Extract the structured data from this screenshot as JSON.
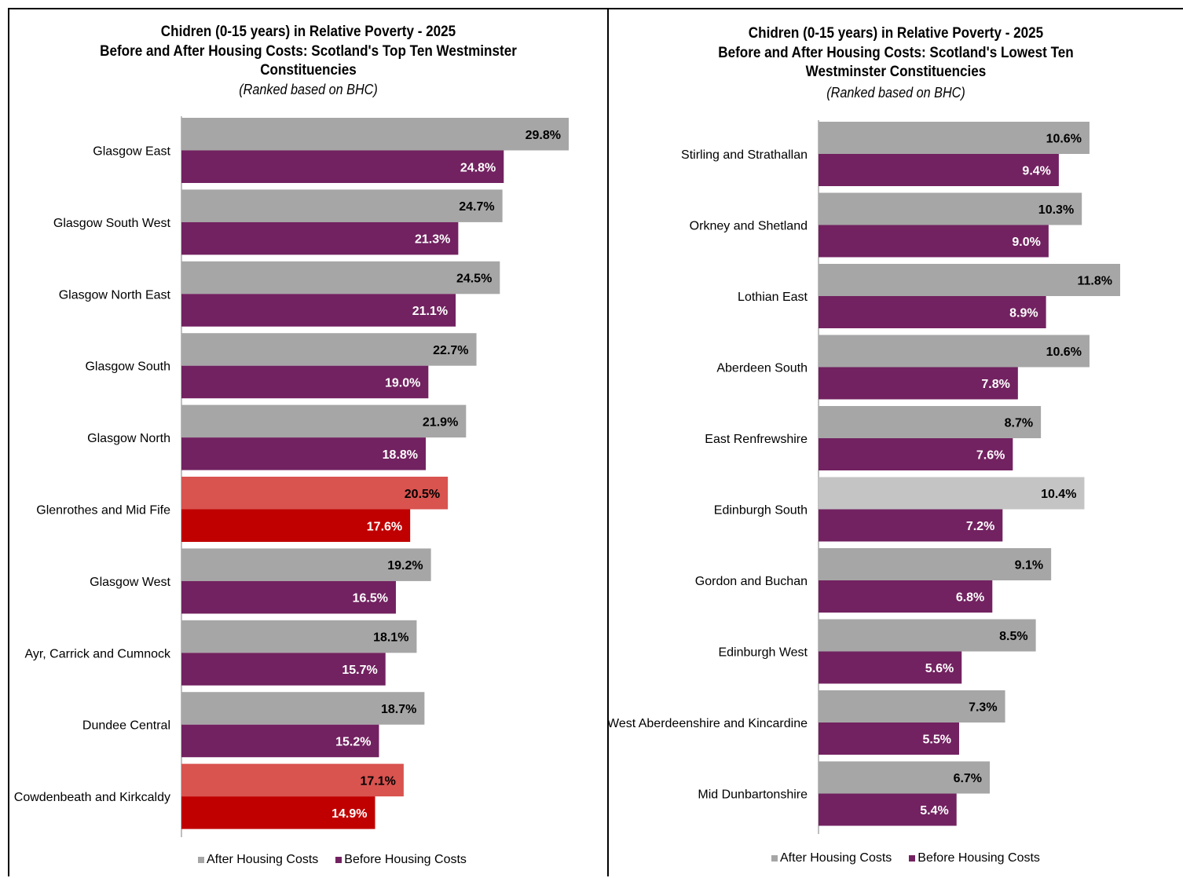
{
  "chart_data": [
    {
      "type": "bar",
      "title": "Chidren (0-15 years) in Relative Poverty - 2025",
      "title2": "Before and After Housing Costs: Scotland's Top Ten Westminster",
      "title3": "Constituencies",
      "subtitle": "(Ranked based on BHC)",
      "orientation": "horizontal",
      "xlim": [
        0,
        30
      ],
      "grid": false,
      "legend_position": "bottom",
      "categories": [
        "Glasgow East",
        "Glasgow South West",
        "Glasgow North East",
        "Glasgow South",
        "Glasgow North",
        "Glenrothes and Mid Fife",
        "Glasgow West",
        "Ayr, Carrick and Cumnock",
        "Dundee Central",
        "Cowdenbeath and Kirkcaldy"
      ],
      "series": [
        {
          "name": "After Housing Costs",
          "color": "#a6a6a6",
          "values": [
            29.8,
            24.7,
            24.5,
            22.7,
            21.9,
            20.5,
            19.2,
            18.1,
            18.7,
            17.1
          ],
          "labels": [
            "29.8%",
            "24.7%",
            "24.5%",
            "22.7%",
            "21.9%",
            "20.5%",
            "19.2%",
            "18.1%",
            "18.7%",
            "17.1%"
          ]
        },
        {
          "name": "Before Housing Costs",
          "color": "#722260",
          "values": [
            24.8,
            21.3,
            21.1,
            19.0,
            18.8,
            17.6,
            16.5,
            15.7,
            15.2,
            14.9
          ],
          "labels": [
            "24.8%",
            "21.3%",
            "21.1%",
            "19.0%",
            "18.8%",
            "17.6%",
            "16.5%",
            "15.7%",
            "15.2%",
            "14.9%"
          ]
        }
      ],
      "highlight": [
        {
          "index": 5,
          "after_color": "#d9534f",
          "before_color": "#c00000"
        },
        {
          "index": 9,
          "after_color": "#d9534f",
          "before_color": "#c00000"
        }
      ]
    },
    {
      "type": "bar",
      "title": "Chidren (0-15 years) in Relative Poverty - 2025",
      "title2": "Before and After Housing Costs: Scotland's Lowest Ten",
      "title3": "Westminster Constituencies",
      "subtitle": "(Ranked based on BHC)",
      "orientation": "horizontal",
      "xlim": [
        0,
        12
      ],
      "grid": false,
      "legend_position": "bottom",
      "categories": [
        "Stirling and Strathallan",
        "Orkney and Shetland",
        "Lothian East",
        "Aberdeen South",
        "East Renfrewshire",
        "Edinburgh South",
        "Gordon and Buchan",
        "Edinburgh West",
        "West Aberdeenshire and Kincardine",
        "Mid Dunbartonshire"
      ],
      "series": [
        {
          "name": "After Housing Costs",
          "color": "#a6a6a6",
          "values": [
            10.6,
            10.3,
            11.8,
            10.6,
            8.7,
            10.4,
            9.1,
            8.5,
            7.3,
            6.7
          ],
          "labels": [
            "10.6%",
            "10.3%",
            "11.8%",
            "10.6%",
            "8.7%",
            "10.4%",
            "9.1%",
            "8.5%",
            "7.3%",
            "6.7%"
          ]
        },
        {
          "name": "Before Housing Costs",
          "color": "#722260",
          "values": [
            9.4,
            9.0,
            8.9,
            7.8,
            7.6,
            7.2,
            6.8,
            5.6,
            5.5,
            5.4
          ],
          "labels": [
            "9.4%",
            "9.0%",
            "8.9%",
            "7.8%",
            "7.6%",
            "7.2%",
            "6.8%",
            "5.6%",
            "5.5%",
            "5.4%"
          ]
        }
      ],
      "highlight": [
        {
          "index": 5,
          "after_color": "#c4c4c4",
          "before_color": "#722260"
        }
      ]
    }
  ]
}
